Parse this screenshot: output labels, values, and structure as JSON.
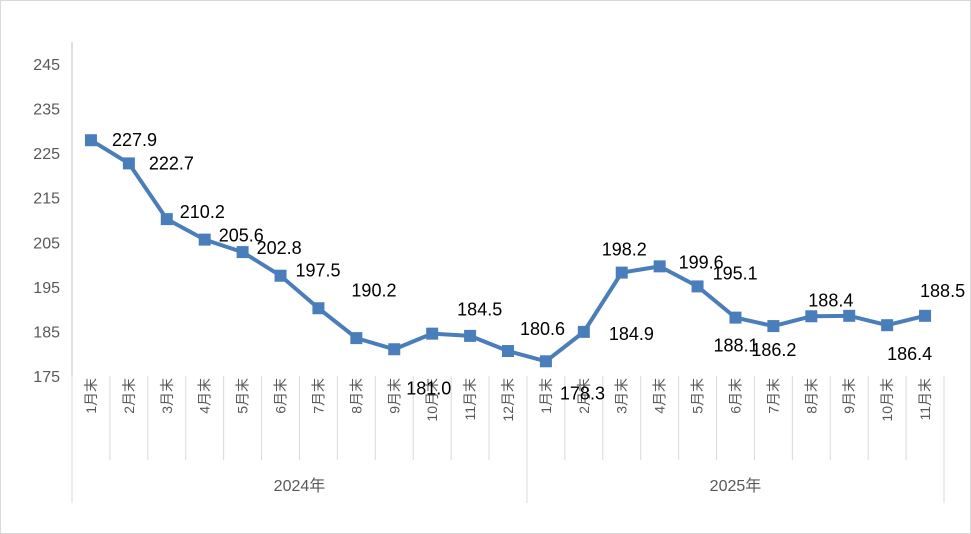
{
  "chart_data": {
    "type": "line",
    "title": "",
    "xlabel": "",
    "ylabel": "",
    "ylim": [
      175,
      245
    ],
    "yticks": [
      175,
      185,
      195,
      205,
      215,
      225,
      235,
      245
    ],
    "ytick_labels": [
      "175",
      "185",
      "195",
      "205",
      "215",
      "225",
      "235",
      "245"
    ],
    "grid": false,
    "legend": "none",
    "categories": [
      "1月末",
      "2月末",
      "3月末",
      "4月末",
      "5月末",
      "6月末",
      "7月末",
      "8月末",
      "9月末",
      "10月末",
      "11月末",
      "12月末",
      "1月末",
      "2月末",
      "3月末",
      "4月末",
      "5月末",
      "6月末",
      "7月末",
      "8月末",
      "9月末",
      "10月末",
      "11月末"
    ],
    "groups": [
      {
        "label": "2024年",
        "start": 0,
        "end": 11
      },
      {
        "label": "2025年",
        "start": 12,
        "end": 22
      }
    ],
    "series": [
      {
        "name": "",
        "color": "#4a7ebb",
        "values": [
          227.9,
          222.7,
          210.2,
          205.6,
          202.8,
          197.5,
          190.2,
          183.5,
          181.0,
          184.5,
          184.0,
          180.6,
          178.3,
          184.9,
          198.2,
          199.6,
          195.1,
          188.1,
          186.2,
          188.4,
          188.5,
          186.4,
          188.5
        ],
        "labels": [
          "227.9",
          "222.7",
          "210.2",
          "205.6",
          "202.8",
          "197.5",
          "190.2",
          "",
          "181.0",
          "184.5",
          "",
          "180.6",
          "178.3",
          "184.9",
          "198.2",
          "199.6",
          "195.1",
          "188.1",
          "186.2",
          "188.4",
          "",
          "186.4",
          "188.5"
        ]
      }
    ]
  }
}
